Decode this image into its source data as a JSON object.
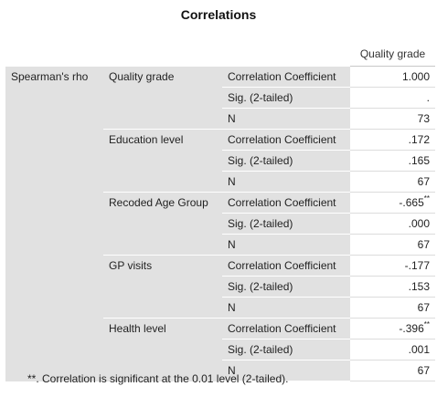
{
  "title": "Correlations",
  "column_header": "Quality grade",
  "row_header": "Spearman's rho",
  "groups": [
    {
      "variable": "Quality grade",
      "rows": [
        {
          "stat": "Correlation Coefficient",
          "value": "1.000",
          "mark": ""
        },
        {
          "stat": "Sig. (2-tailed)",
          "value": ".",
          "mark": ""
        },
        {
          "stat": "N",
          "value": "73",
          "mark": ""
        }
      ]
    },
    {
      "variable": "Education level",
      "rows": [
        {
          "stat": "Correlation Coefficient",
          "value": ".172",
          "mark": ""
        },
        {
          "stat": "Sig. (2-tailed)",
          "value": ".165",
          "mark": ""
        },
        {
          "stat": "N",
          "value": "67",
          "mark": ""
        }
      ]
    },
    {
      "variable": "Recoded Age Group",
      "rows": [
        {
          "stat": "Correlation Coefficient",
          "value": "-.665",
          "mark": "**"
        },
        {
          "stat": "Sig. (2-tailed)",
          "value": ".000",
          "mark": ""
        },
        {
          "stat": "N",
          "value": "67",
          "mark": ""
        }
      ]
    },
    {
      "variable": "GP visits",
      "rows": [
        {
          "stat": "Correlation Coefficient",
          "value": "-.177",
          "mark": ""
        },
        {
          "stat": "Sig. (2-tailed)",
          "value": ".153",
          "mark": ""
        },
        {
          "stat": "N",
          "value": "67",
          "mark": ""
        }
      ]
    },
    {
      "variable": "Health level",
      "rows": [
        {
          "stat": "Correlation Coefficient",
          "value": "-.396",
          "mark": "**"
        },
        {
          "stat": "Sig. (2-tailed)",
          "value": ".001",
          "mark": ""
        },
        {
          "stat": "N",
          "value": "67",
          "mark": ""
        }
      ]
    }
  ],
  "footnote": "**. Correlation is significant at the 0.01 level (2-tailed)."
}
